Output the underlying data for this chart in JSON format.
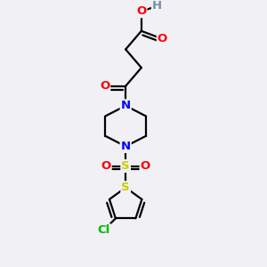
{
  "background_color": "#f0f0f5",
  "atom_colors": {
    "C": "#000000",
    "H": "#7090a0",
    "O": "#ff0000",
    "N": "#0000ff",
    "S_sulfonyl": "#cccc00",
    "S_thio": "#cccc00",
    "Cl": "#00bb00"
  },
  "bond_color": "#000000",
  "bond_width": 1.6,
  "font_size": 9.5
}
